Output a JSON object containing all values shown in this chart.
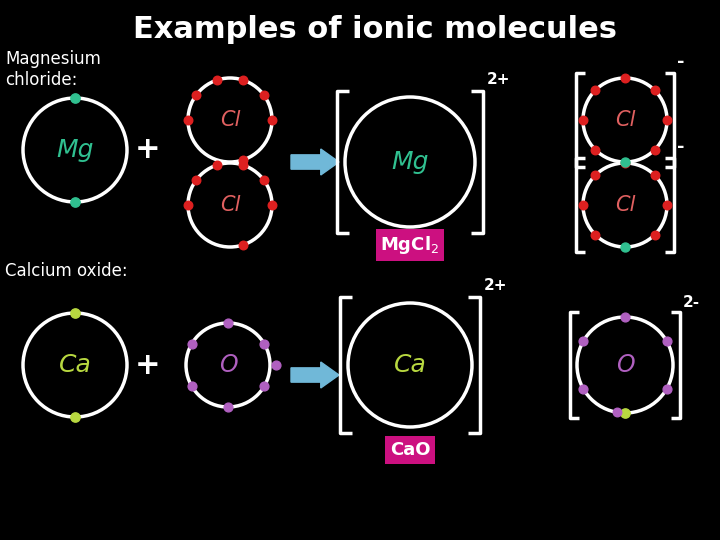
{
  "title": "Examples of ionic molecules",
  "title_color": "#ffffff",
  "title_fontsize": 22,
  "bg_color": "#000000",
  "label_mg_cl": "Magnesium\nchloride:",
  "label_ca_o": "Calcium oxide:",
  "label_color": "#ffffff",
  "label_fontsize": 12,
  "mg_color": "#30c090",
  "cl_color": "#e06060",
  "ca_color": "#b8d840",
  "o_color": "#b060c0",
  "electron_mg_color": "#30c090",
  "electron_cl_color": "#dd2020",
  "electron_ca_color": "#b8d840",
  "electron_o_color": "#b060c0",
  "circle_color": "#ffffff",
  "arrow_color": "#70b8d8",
  "bracket_color": "#ffffff",
  "mgcl2_bg": "#cc1080",
  "cao_bg": "#cc1080",
  "charge_color": "#ffffff"
}
